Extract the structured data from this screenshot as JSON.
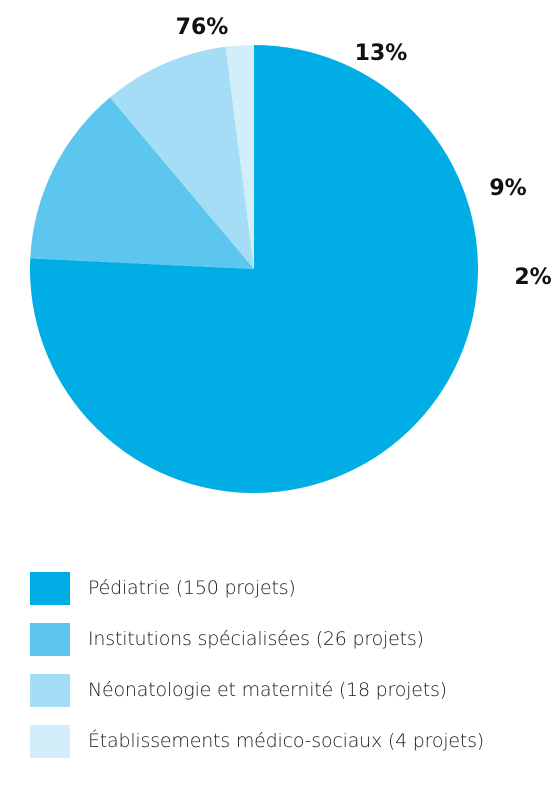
{
  "chart_data": {
    "type": "pie",
    "title": "",
    "categories": [
      "Pédiatrie (150 projets)",
      "Institutions spécialisées (26 projets)",
      "Néonatologie et maternité (18 projets)",
      "Établissements médico-sociaux (4 projets)"
    ],
    "values": [
      150,
      26,
      18,
      4
    ],
    "percent_labels": [
      "76%",
      "13%",
      "9%",
      "2%"
    ],
    "colors": [
      "#00ADE4",
      "#5CC6EE",
      "#A4DDF5",
      "#D2EEFA"
    ],
    "legend_placement": "bottom",
    "start_angle_deg": 90,
    "direction": "clockwise"
  }
}
